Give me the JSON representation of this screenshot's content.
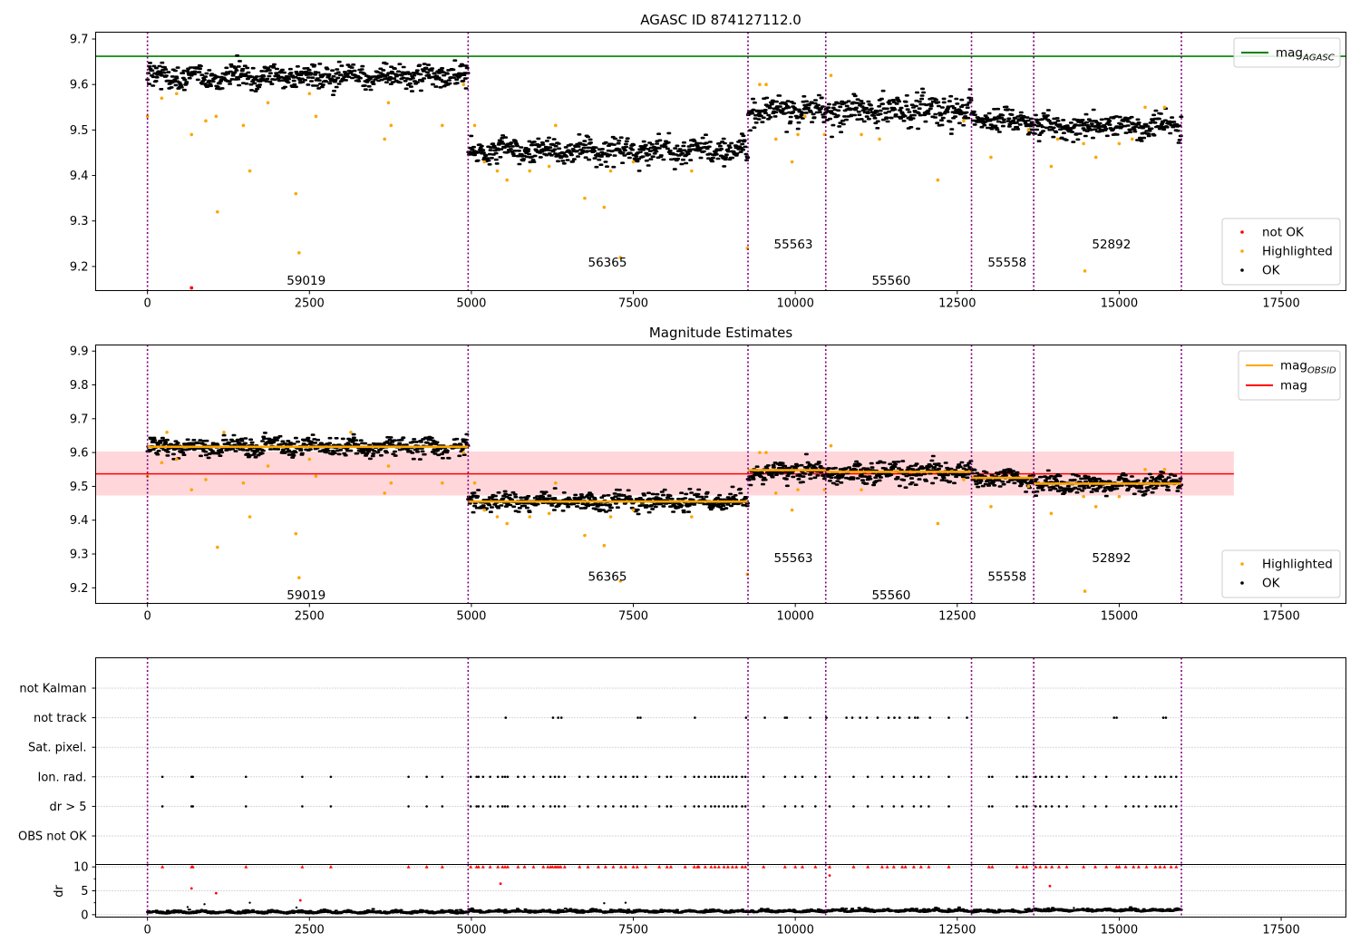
{
  "colors": {
    "ok": "#000000",
    "highlighted": "#ffa500",
    "not_ok": "#ff0000",
    "agasc_line": "#008000",
    "obsid_line": "#ffa500",
    "mag_line": "#ff0000",
    "mag_band": "#ffd7db",
    "obs_boundary": "#800080",
    "grid": "#b0b0b0"
  },
  "chart_data": [
    {
      "id": "top",
      "type": "scatter",
      "title": "AGASC ID 874127112.0",
      "xlabel": "",
      "ylabel": "",
      "xlim": [
        -800,
        18500
      ],
      "ylim": [
        9.147,
        9.715
      ],
      "xticks": [
        0,
        2500,
        5000,
        7500,
        10000,
        12500,
        15000,
        17500
      ],
      "yticks": [
        9.2,
        9.3,
        9.4,
        9.5,
        9.6,
        9.7
      ],
      "grid": false,
      "legend": {
        "placement": "top-right",
        "entries": [
          {
            "label": "mag",
            "sub": "AGASC",
            "kind": "line",
            "color": "#008000"
          }
        ]
      },
      "legend2": {
        "placement": "bottom-right",
        "entries": [
          {
            "label": "not OK",
            "kind": "dot",
            "color": "#ff0000"
          },
          {
            "label": "Highlighted",
            "kind": "dot",
            "color": "#ffa500"
          },
          {
            "label": "OK",
            "kind": "dot",
            "color": "#000000"
          }
        ]
      },
      "hlines": [
        {
          "name": "mag_AGASC",
          "y": 9.662,
          "x0": -800,
          "x1": 18500,
          "color": "#008000"
        }
      ],
      "obs_boundaries": [
        0,
        4950,
        9270,
        10470,
        12720,
        13680,
        15960
      ],
      "segments": [
        {
          "obsid": "59019",
          "x0": 0,
          "x1": 4950,
          "mean": 9.617,
          "amp": 0.028,
          "label_x": 2450,
          "label_y": 9.17
        },
        {
          "obsid": "56365",
          "x0": 4950,
          "x1": 9270,
          "mean": 9.455,
          "amp": 0.028,
          "label_x": 7100,
          "label_y": 9.21
        },
        {
          "obsid": "55563",
          "x0": 9270,
          "x1": 10470,
          "mean": 9.543,
          "amp": 0.03,
          "label_x": 9970,
          "label_y": 9.25
        },
        {
          "obsid": "55560",
          "x0": 10470,
          "x1": 12720,
          "mean": 9.543,
          "amp": 0.035,
          "label_x": 11480,
          "label_y": 9.17
        },
        {
          "obsid": "55558",
          "x0": 12720,
          "x1": 13680,
          "mean": 9.523,
          "amp": 0.025,
          "label_x": 13270,
          "label_y": 9.21
        },
        {
          "obsid": "52892",
          "x0": 13680,
          "x1": 15960,
          "mean": 9.508,
          "amp": 0.028,
          "label_x": 14880,
          "label_y": 9.25
        }
      ],
      "highlighted": [
        [
          0,
          9.53
        ],
        [
          220,
          9.57
        ],
        [
          450,
          9.58
        ],
        [
          680,
          9.49
        ],
        [
          900,
          9.52
        ],
        [
          1060,
          9.53
        ],
        [
          1080,
          9.32
        ],
        [
          1480,
          9.51
        ],
        [
          1580,
          9.41
        ],
        [
          1860,
          9.56
        ],
        [
          2290,
          9.36
        ],
        [
          2340,
          9.23
        ],
        [
          2500,
          9.58
        ],
        [
          2600,
          9.53
        ],
        [
          3660,
          9.48
        ],
        [
          3760,
          9.51
        ],
        [
          3720,
          9.56
        ],
        [
          4550,
          9.51
        ],
        [
          4880,
          9.6
        ],
        [
          5050,
          9.51
        ],
        [
          5200,
          9.43
        ],
        [
          5400,
          9.41
        ],
        [
          5550,
          9.39
        ],
        [
          5900,
          9.41
        ],
        [
          6200,
          9.42
        ],
        [
          6300,
          9.51
        ],
        [
          6750,
          9.35
        ],
        [
          7050,
          9.33
        ],
        [
          7150,
          9.41
        ],
        [
          7300,
          9.22
        ],
        [
          7500,
          9.43
        ],
        [
          8400,
          9.41
        ],
        [
          9260,
          9.24
        ],
        [
          9450,
          9.6
        ],
        [
          9550,
          9.6
        ],
        [
          9700,
          9.48
        ],
        [
          9950,
          9.43
        ],
        [
          10040,
          9.49
        ],
        [
          10150,
          9.53
        ],
        [
          10450,
          9.49
        ],
        [
          10550,
          9.62
        ],
        [
          11020,
          9.49
        ],
        [
          11300,
          9.48
        ],
        [
          12200,
          9.39
        ],
        [
          12600,
          9.52
        ],
        [
          13020,
          9.44
        ],
        [
          13600,
          9.5
        ],
        [
          13950,
          9.42
        ],
        [
          14050,
          9.48
        ],
        [
          14450,
          9.47
        ],
        [
          14640,
          9.44
        ],
        [
          14470,
          9.19
        ],
        [
          15000,
          9.47
        ],
        [
          15200,
          9.48
        ],
        [
          15400,
          9.55
        ],
        [
          15700,
          9.55
        ]
      ],
      "not_ok": [
        [
          680,
          9.153
        ]
      ]
    },
    {
      "id": "middle",
      "type": "scatter",
      "title": "Magnitude Estimates",
      "xlabel": "",
      "ylabel": "",
      "xlim": [
        -800,
        18500
      ],
      "ylim": [
        9.154,
        9.918
      ],
      "xticks": [
        0,
        2500,
        5000,
        7500,
        10000,
        12500,
        15000,
        17500
      ],
      "yticks": [
        9.2,
        9.3,
        9.4,
        9.5,
        9.6,
        9.7,
        9.8,
        9.9
      ],
      "grid": false,
      "legend": {
        "placement": "top-right",
        "entries": [
          {
            "label": "mag",
            "sub": "OBSID",
            "kind": "line",
            "color": "#ffa500"
          },
          {
            "label": "mag",
            "sub": "",
            "kind": "line",
            "color": "#ff0000"
          }
        ]
      },
      "legend2": {
        "placement": "bottom-right",
        "entries": [
          {
            "label": "Highlighted",
            "kind": "dot",
            "color": "#ffa500"
          },
          {
            "label": "OK",
            "kind": "dot",
            "color": "#000000"
          }
        ]
      },
      "hlines": [
        {
          "name": "mag",
          "y": 9.537,
          "x0": -800,
          "x1": 16770,
          "color": "#ff0000"
        }
      ],
      "band": {
        "y0": 9.473,
        "y1": 9.603,
        "x0": -800,
        "x1": 16770
      },
      "obs_boundaries": [
        0,
        4950,
        9270,
        10470,
        12720,
        13680,
        15960
      ],
      "segments": [
        {
          "obsid": "59019",
          "x0": 0,
          "x1": 4950,
          "mean": 9.617,
          "amp": 0.028,
          "label_x": 2450,
          "label_y": 9.18
        },
        {
          "obsid": "56365",
          "x0": 4950,
          "x1": 9270,
          "mean": 9.455,
          "amp": 0.028,
          "label_x": 7100,
          "label_y": 9.235
        },
        {
          "obsid": "55563",
          "x0": 9270,
          "x1": 10470,
          "mean": 9.543,
          "amp": 0.03,
          "label_x": 9970,
          "label_y": 9.29
        },
        {
          "obsid": "55560",
          "x0": 10470,
          "x1": 12720,
          "mean": 9.543,
          "amp": 0.035,
          "label_x": 11480,
          "label_y": 9.18
        },
        {
          "obsid": "55558",
          "x0": 12720,
          "x1": 13680,
          "mean": 9.523,
          "amp": 0.025,
          "label_x": 13270,
          "label_y": 9.235
        },
        {
          "obsid": "52892",
          "x0": 13680,
          "x1": 15960,
          "mean": 9.508,
          "amp": 0.028,
          "label_x": 14880,
          "label_y": 9.29
        }
      ],
      "obsid_means": [
        {
          "x0": 0,
          "x1": 4950,
          "y": 9.617
        },
        {
          "x0": 4950,
          "x1": 9270,
          "y": 9.455
        },
        {
          "x0": 9270,
          "x1": 10470,
          "y": 9.548
        },
        {
          "x0": 10470,
          "x1": 12720,
          "y": 9.543
        },
        {
          "x0": 12720,
          "x1": 13680,
          "y": 9.525
        },
        {
          "x0": 13680,
          "x1": 15960,
          "y": 9.508
        }
      ],
      "highlighted": [
        [
          0,
          9.53
        ],
        [
          220,
          9.57
        ],
        [
          300,
          9.66
        ],
        [
          450,
          9.58
        ],
        [
          680,
          9.49
        ],
        [
          900,
          9.52
        ],
        [
          1080,
          9.32
        ],
        [
          1180,
          9.66
        ],
        [
          1480,
          9.51
        ],
        [
          1580,
          9.41
        ],
        [
          1860,
          9.56
        ],
        [
          2290,
          9.36
        ],
        [
          2340,
          9.23
        ],
        [
          2500,
          9.58
        ],
        [
          2600,
          9.53
        ],
        [
          3140,
          9.66
        ],
        [
          3660,
          9.48
        ],
        [
          3760,
          9.51
        ],
        [
          3720,
          9.56
        ],
        [
          4550,
          9.51
        ],
        [
          4880,
          9.6
        ],
        [
          5050,
          9.51
        ],
        [
          5200,
          9.43
        ],
        [
          5400,
          9.41
        ],
        [
          5550,
          9.39
        ],
        [
          5900,
          9.41
        ],
        [
          6200,
          9.42
        ],
        [
          6300,
          9.51
        ],
        [
          6750,
          9.355
        ],
        [
          7050,
          9.325
        ],
        [
          7150,
          9.41
        ],
        [
          7300,
          9.22
        ],
        [
          7500,
          9.43
        ],
        [
          8400,
          9.41
        ],
        [
          9260,
          9.24
        ],
        [
          9450,
          9.6
        ],
        [
          9550,
          9.6
        ],
        [
          9700,
          9.48
        ],
        [
          9950,
          9.43
        ],
        [
          10040,
          9.49
        ],
        [
          10450,
          9.49
        ],
        [
          10550,
          9.62
        ],
        [
          11020,
          9.49
        ],
        [
          12200,
          9.39
        ],
        [
          12600,
          9.52
        ],
        [
          13020,
          9.44
        ],
        [
          13600,
          9.5
        ],
        [
          13950,
          9.42
        ],
        [
          14450,
          9.47
        ],
        [
          14640,
          9.44
        ],
        [
          14470,
          9.19
        ],
        [
          15000,
          9.47
        ],
        [
          15400,
          9.55
        ],
        [
          15700,
          9.55
        ]
      ],
      "not_ok": []
    },
    {
      "id": "flags",
      "type": "scatter",
      "title": "",
      "xlabel": "",
      "ylabel": "",
      "xlim": [
        -800,
        18500
      ],
      "categories": [
        "not Kalman",
        "not track",
        "Sat. pixel.",
        "Ion. rad.",
        "dr > 5",
        "OBS not OK"
      ],
      "grid": true,
      "obs_boundaries": [
        0,
        4950,
        9270,
        10470,
        12720,
        13680,
        15960
      ],
      "flag_points": {
        "not track": [
          5530,
          6260,
          6340,
          6390,
          7570,
          7610,
          8450,
          9240,
          9530,
          9840,
          9870,
          10230,
          10480,
          10790,
          10880,
          11000,
          11100,
          11270,
          11440,
          11530,
          11610,
          11760,
          11850,
          11890,
          12080,
          12370,
          12650,
          14920,
          14960,
          15680,
          15720
        ],
        "Ion. rad.": [
          230,
          680,
          700,
          1520,
          2390,
          2830,
          4030,
          4310,
          4550,
          4990,
          5080,
          5110,
          5180,
          5290,
          5410,
          5480,
          5520,
          5560,
          5720,
          5820,
          5960,
          6110,
          6220,
          6290,
          6350,
          6440,
          6670,
          6800,
          6960,
          7070,
          7190,
          7310,
          7380,
          7500,
          7560,
          7690,
          7900,
          8020,
          8080,
          8300,
          8440,
          8510,
          8610,
          8700,
          8760,
          8820,
          8900,
          8960,
          9030,
          9090,
          9180,
          9230,
          9510,
          9840,
          10000,
          10110,
          10310,
          10530,
          10900,
          11120,
          11340,
          11520,
          11650,
          11830,
          11940,
          12060,
          12370,
          12990,
          13040,
          13420,
          13520,
          13570,
          13710,
          13780,
          13870,
          13960,
          14070,
          14190,
          14450,
          14630,
          14800,
          15100,
          15220,
          15300,
          15420,
          15560,
          15630,
          15700,
          15800,
          15880
        ],
        "dr > 5": [
          230,
          680,
          700,
          1520,
          2390,
          2830,
          4030,
          4310,
          4550,
          4990,
          5080,
          5110,
          5180,
          5290,
          5410,
          5480,
          5520,
          5560,
          5720,
          5820,
          5960,
          6110,
          6220,
          6290,
          6350,
          6440,
          6670,
          6800,
          6960,
          7070,
          7190,
          7310,
          7380,
          7500,
          7560,
          7690,
          7900,
          8020,
          8080,
          8300,
          8440,
          8510,
          8610,
          8700,
          8760,
          8820,
          8900,
          8960,
          9030,
          9090,
          9180,
          9230,
          9510,
          9840,
          10000,
          10110,
          10310,
          10530,
          10900,
          11120,
          11340,
          11520,
          11650,
          11830,
          11940,
          12060,
          12370,
          12990,
          13040,
          13420,
          13520,
          13570,
          13710,
          13780,
          13870,
          13960,
          14070,
          14190,
          14450,
          14630,
          14800,
          15100,
          15220,
          15300,
          15420,
          15560,
          15630,
          15700,
          15800,
          15880
        ]
      }
    },
    {
      "id": "dr",
      "type": "scatter",
      "title": "",
      "xlabel": "",
      "ylabel": "dr",
      "xlim": [
        -800,
        18500
      ],
      "ylim": [
        -0.5,
        10.5
      ],
      "xticks": [
        0,
        2500,
        5000,
        7500,
        10000,
        12500,
        15000,
        17500
      ],
      "yticks": [
        0,
        5,
        10
      ],
      "grid": true,
      "baseline_segments": [
        {
          "x0": 0,
          "x1": 4950,
          "mean": 0.35
        },
        {
          "x0": 4950,
          "x1": 9270,
          "mean": 0.5
        },
        {
          "x0": 9270,
          "x1": 10470,
          "mean": 0.55
        },
        {
          "x0": 10470,
          "x1": 12720,
          "mean": 0.65
        },
        {
          "x0": 12720,
          "x1": 13680,
          "mean": 0.55
        },
        {
          "x0": 13680,
          "x1": 15960,
          "mean": 0.75
        }
      ],
      "outliers_red": [
        [
          680,
          5.5
        ],
        [
          1060,
          4.5
        ],
        [
          2360,
          3.0
        ],
        [
          5450,
          6.5
        ],
        [
          10530,
          8.2
        ],
        [
          13930,
          6.0
        ]
      ],
      "outliers_black": [
        [
          620,
          1.6
        ],
        [
          880,
          2.2
        ],
        [
          1580,
          2.5
        ],
        [
          2300,
          1.5
        ],
        [
          7050,
          2.4
        ],
        [
          7380,
          2.5
        ],
        [
          14300,
          1.4
        ]
      ],
      "clipped_red_x": [
        230,
        680,
        700,
        1520,
        2390,
        2830,
        4030,
        4310,
        4550,
        4990,
        5080,
        5110,
        5180,
        5290,
        5410,
        5480,
        5520,
        5560,
        5720,
        5820,
        5960,
        6110,
        6180,
        6220,
        6250,
        6290,
        6320,
        6350,
        6380,
        6440,
        6670,
        6800,
        6960,
        7070,
        7190,
        7310,
        7380,
        7500,
        7560,
        7690,
        7900,
        8020,
        8080,
        8300,
        8440,
        8490,
        8510,
        8610,
        8700,
        8760,
        8820,
        8900,
        8960,
        9030,
        9090,
        9180,
        9230,
        9510,
        9840,
        10000,
        10110,
        10310,
        10530,
        10900,
        11120,
        11340,
        11420,
        11520,
        11650,
        11700,
        11830,
        11940,
        12060,
        12370,
        12990,
        13040,
        13420,
        13520,
        13570,
        13710,
        13780,
        13870,
        13960,
        14070,
        14190,
        14450,
        14630,
        14800,
        14960,
        15000,
        15100,
        15220,
        15300,
        15420,
        15560,
        15630,
        15700,
        15800,
        15880
      ]
    }
  ]
}
